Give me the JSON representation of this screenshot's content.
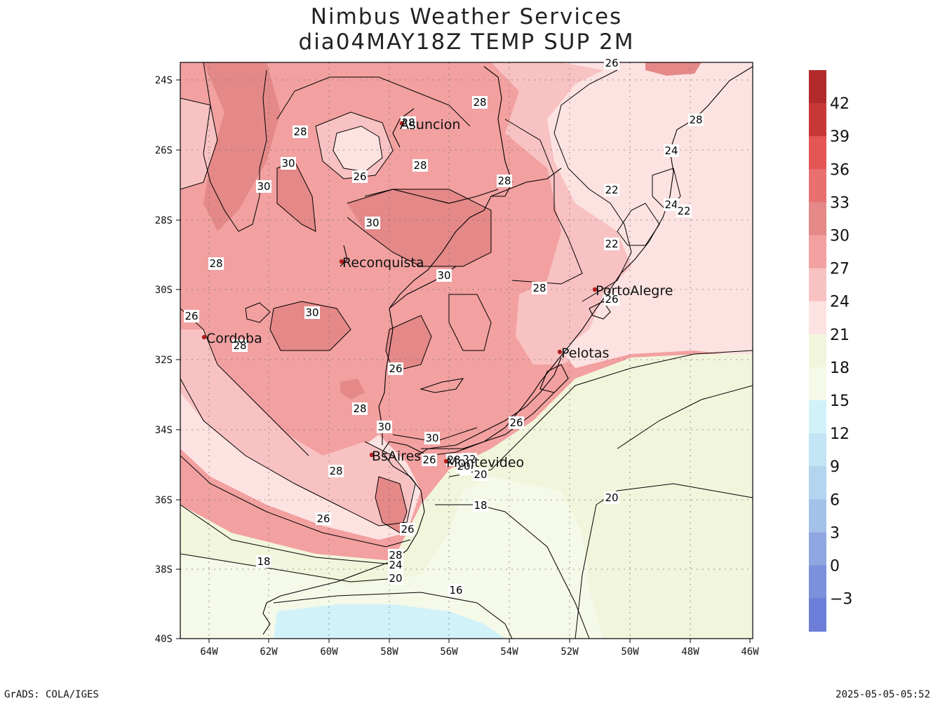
{
  "title": {
    "line1": "Nimbus Weather Services",
    "line2": "dia04MAY18Z TEMP SUP 2M"
  },
  "footer": {
    "left": "GrADS: COLA/IGES",
    "right": "2025-05-05-05:52"
  },
  "axes": {
    "lon_labels": [
      "64W",
      "62W",
      "60W",
      "58W",
      "56W",
      "54W",
      "52W",
      "50W",
      "48W",
      "46W"
    ],
    "lat_labels": [
      "24S",
      "26S",
      "28S",
      "30S",
      "32S",
      "34S",
      "36S",
      "38S",
      "40S"
    ]
  },
  "colorbar": {
    "labels": [
      "42",
      "39",
      "36",
      "33",
      "30",
      "27",
      "24",
      "21",
      "18",
      "15",
      "12",
      "9",
      "6",
      "3",
      "0",
      "−3"
    ],
    "colors": [
      "#b22a2a",
      "#c83838",
      "#e55555",
      "#e87070",
      "#e48888",
      "#f2a0a0",
      "#f8c2c2",
      "#fde2e2",
      "#f1f5dc",
      "#f5f9e8",
      "#d2f2fa",
      "#c2e4f4",
      "#b4d4ef",
      "#a4c2e9",
      "#90a6e0",
      "#7c90db",
      "#6c7ed8"
    ]
  },
  "cities": [
    {
      "name": "Asuncion"
    },
    {
      "name": "Reconquista"
    },
    {
      "name": "Cordoba"
    },
    {
      "name": "PortoAlegre"
    },
    {
      "name": "Pelotas"
    },
    {
      "name": "BsAires"
    },
    {
      "name": "Montevideo"
    }
  ],
  "contour_labels": [
    "28",
    "28",
    "28",
    "28",
    "26",
    "30",
    "30",
    "28",
    "30",
    "28",
    "22",
    "24",
    "26",
    "24",
    "22",
    "22",
    "28",
    "30",
    "30",
    "28",
    "26",
    "26",
    "28",
    "26",
    "28",
    "30",
    "30",
    "26",
    "28",
    "26",
    "26",
    "28",
    "24",
    "22",
    "20",
    "20",
    "18",
    "20",
    "16",
    "18",
    "22",
    "20",
    "26",
    "28"
  ]
}
